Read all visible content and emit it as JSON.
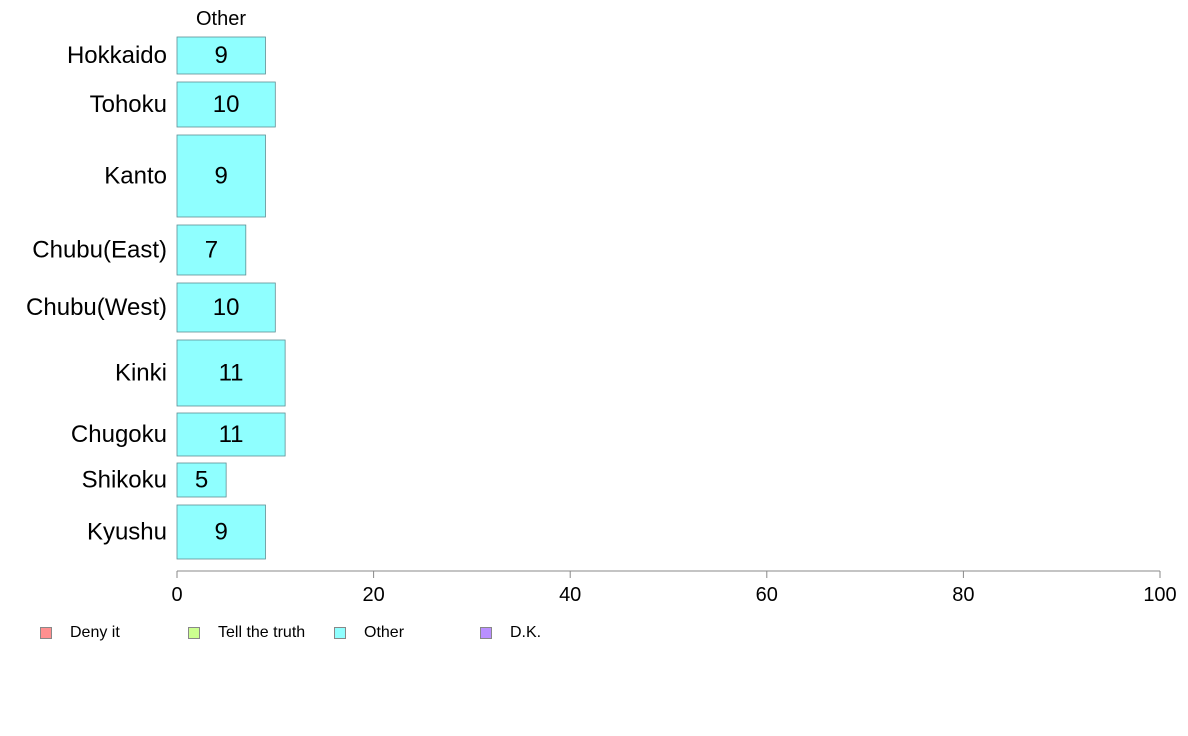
{
  "chart_data": {
    "type": "bar",
    "orientation": "horizontal",
    "stacked": true,
    "title": "Other",
    "categories": [
      "Hokkaido",
      "Tohoku",
      "Kanto",
      "Chubu(East)",
      "Chubu(West)",
      "Kinki",
      "Chugoku",
      "Shikoku",
      "Kyushu"
    ],
    "series": [
      {
        "name": "Deny it",
        "color": "#ff8f8f",
        "values": [
          0,
          0,
          0,
          0,
          0,
          0,
          0,
          0,
          0
        ]
      },
      {
        "name": "Tell the truth",
        "color": "#ccff8f",
        "values": [
          0,
          0,
          0,
          0,
          0,
          0,
          0,
          0,
          0
        ]
      },
      {
        "name": "Other",
        "color": "#8fffff",
        "values": [
          9,
          10,
          9,
          7,
          10,
          11,
          11,
          5,
          9
        ]
      },
      {
        "name": "D.K.",
        "color": "#b98fff",
        "values": [
          0,
          0,
          0,
          0,
          0,
          0,
          0,
          0,
          0
        ]
      }
    ],
    "data_labels": [
      "9",
      "10",
      "9",
      "7",
      "10",
      "11",
      "11",
      "5",
      "9"
    ],
    "xlim": [
      0,
      100
    ],
    "xticks": [
      0,
      20,
      40,
      60,
      80,
      100
    ],
    "xtick_labels": [
      "0",
      "20",
      "40",
      "60",
      "80",
      "100"
    ],
    "xlabel": "",
    "ylabel": "",
    "grid": false,
    "legend_position": "bottom-left"
  }
}
